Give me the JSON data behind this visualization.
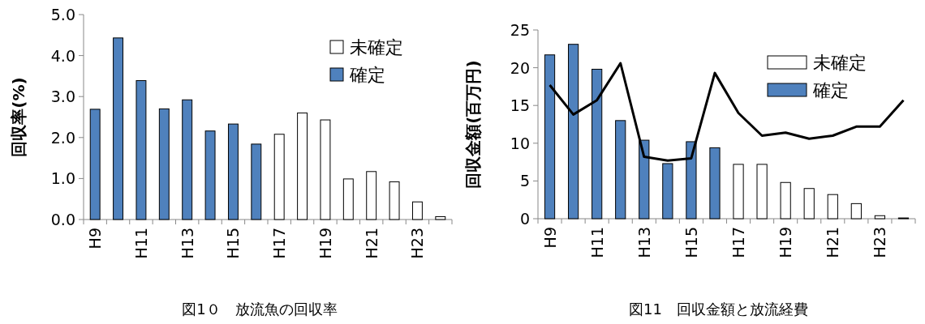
{
  "chart_data": [
    {
      "type": "bar",
      "legend": "top right",
      "ylabel": "回収率(%)",
      "annotations": [
        "図1０　放流魚の回収率"
      ],
      "categories": [
        "H9",
        null,
        "H11",
        null,
        "H13",
        null,
        "H15",
        null,
        "H17",
        null,
        "H19",
        null,
        "H21",
        null,
        "H23",
        null
      ],
      "ylim": [
        0,
        5
      ],
      "yticks": [
        {
          "value": 0,
          "label": "0.0"
        },
        {
          "value": 1,
          "label": "1.0"
        },
        {
          "value": 2,
          "label": "2.0"
        },
        {
          "value": 3,
          "label": "3.0"
        },
        {
          "value": 4,
          "label": "4.0"
        },
        {
          "value": 5,
          "label": "5.0"
        }
      ],
      "series": [
        {
          "name": "未確定",
          "color": "#ffffff",
          "values": [
            null,
            null,
            null,
            null,
            null,
            null,
            null,
            null,
            2.08,
            2.6,
            2.43,
            0.99,
            1.17,
            0.92,
            0.43,
            0.07
          ]
        },
        {
          "name": "確定",
          "color": "#4f81bd",
          "values": [
            2.69,
            4.43,
            3.39,
            2.7,
            2.92,
            2.16,
            2.33,
            1.84,
            null,
            null,
            null,
            null,
            null,
            null,
            null,
            null
          ]
        }
      ]
    },
    {
      "type": "bar",
      "legend": "top right",
      "ylabel": "回収金額(百万円)",
      "annotations": [
        "図11　回収金額と放流経費"
      ],
      "categories": [
        "H9",
        null,
        "H11",
        null,
        "H13",
        null,
        "H15",
        null,
        "H17",
        null,
        "H19",
        null,
        "H21",
        null,
        "H23",
        null
      ],
      "ylim": [
        0,
        25
      ],
      "yticks": [
        0,
        5,
        10,
        15,
        20,
        25
      ],
      "series": [
        {
          "name": "未確定",
          "color": "#ffffff",
          "values": [
            null,
            null,
            null,
            null,
            null,
            null,
            null,
            null,
            7.2,
            7.2,
            4.8,
            4.0,
            3.2,
            2.0,
            0.4,
            0.1
          ]
        },
        {
          "name": "確定",
          "color": "#4f81bd",
          "values": [
            21.7,
            23.1,
            19.8,
            13.0,
            10.4,
            7.3,
            10.2,
            9.4,
            null,
            null,
            null,
            null,
            null,
            null,
            null,
            null
          ]
        },
        {
          "type": "line",
          "color": "#000000",
          "values": [
            17.7,
            13.8,
            15.7,
            20.6,
            8.2,
            7.7,
            8.0,
            19.3,
            14.0,
            11.0,
            11.4,
            10.6,
            11.0,
            12.2,
            12.2,
            15.7
          ]
        }
      ]
    }
  ]
}
